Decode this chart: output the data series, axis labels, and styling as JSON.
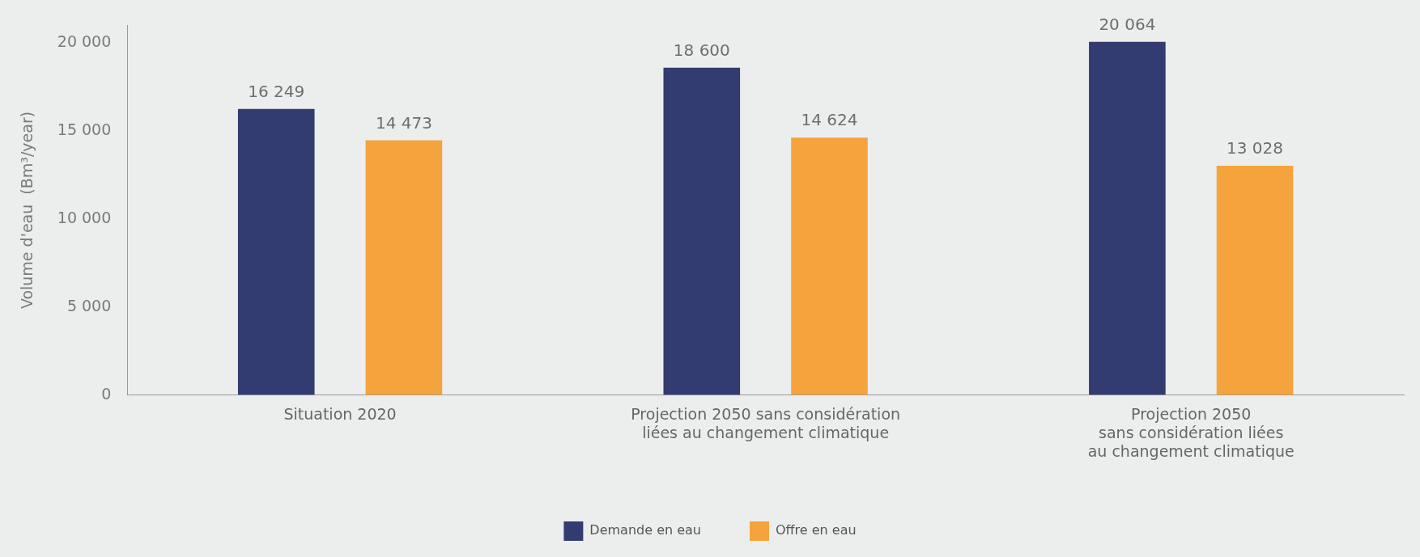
{
  "chart_data": {
    "type": "bar",
    "ylabel": "Volume d'eau  (Bm³/year)",
    "categories": [
      "Situation 2020",
      "Projection 2050 sans considération\nliées au changement climatique",
      "Projection 2050\nsans considération liées\nau changement climatique"
    ],
    "series": [
      {
        "name": "Demande en eau",
        "color": "#323c70",
        "values": [
          16249,
          18600,
          20064
        ],
        "value_labels": [
          "16 249",
          "18 600",
          "20 064"
        ]
      },
      {
        "name": "Offre en eau",
        "color": "#f5a33c",
        "values": [
          14473,
          14624,
          13028
        ],
        "value_labels": [
          "14 473",
          "14 624",
          "13 028"
        ]
      }
    ],
    "ylim": [
      0,
      21000
    ],
    "yticks": [
      {
        "value": 0,
        "label": "0"
      },
      {
        "value": 5000,
        "label": "5 000"
      },
      {
        "value": 10000,
        "label": "10 000"
      },
      {
        "value": 15000,
        "label": "15 000"
      },
      {
        "value": 20000,
        "label": "20 000"
      }
    ],
    "grid": false,
    "legend": "bottom"
  }
}
